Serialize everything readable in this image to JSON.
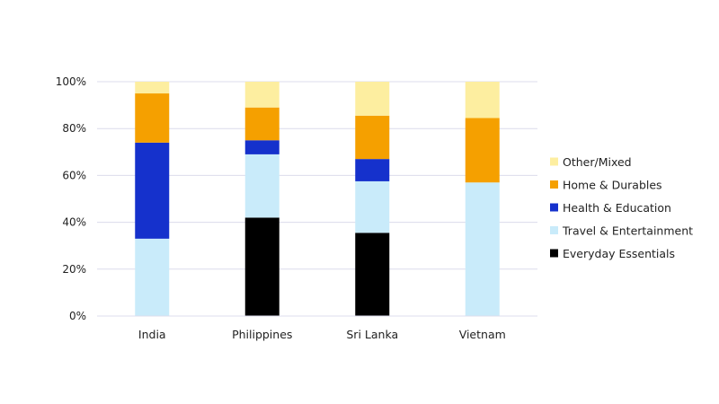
{
  "chart_data": {
    "type": "bar",
    "stacked": true,
    "categories": [
      "India",
      "Philippines",
      "Sri Lanka",
      "Vietnam"
    ],
    "series": [
      {
        "name": "Everyday Essentials",
        "color": "#000000",
        "values": [
          0,
          42,
          35.5,
          0
        ]
      },
      {
        "name": "Travel & Entertainment",
        "color": "#c9ebfa",
        "values": [
          33,
          27,
          22,
          57
        ]
      },
      {
        "name": "Health & Education",
        "color": "#1531cc",
        "values": [
          41,
          6,
          9.5,
          0
        ]
      },
      {
        "name": "Home & Durables",
        "color": "#f5a000",
        "values": [
          21,
          14,
          18.5,
          27.5
        ]
      },
      {
        "name": "Other/Mixed",
        "color": "#fdeea0",
        "values": [
          5,
          11,
          14.5,
          15.5
        ]
      }
    ],
    "ylim": [
      0,
      100
    ],
    "yticks": [
      "0%",
      "20%",
      "40%",
      "60%",
      "80%",
      "100%"
    ],
    "ytick_values": [
      0,
      20,
      40,
      60,
      80,
      100
    ],
    "grid": true,
    "legend_position": "right",
    "legend_order": [
      "Other/Mixed",
      "Home & Durables",
      "Health & Education",
      "Travel & Entertainment",
      "Everyday Essentials"
    ],
    "title": "",
    "xlabel": "",
    "ylabel": ""
  }
}
